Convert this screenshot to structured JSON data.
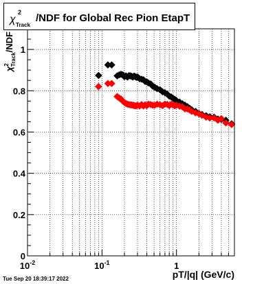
{
  "title": {
    "chi": "χ",
    "sup": "2",
    "sub": "Track",
    "text": "/NDF for Global Rec Pion EtapT"
  },
  "timestamp": "Tue Sep 20 18:39:17 2022",
  "chart_data": {
    "type": "scatter",
    "title": "χ²Track/NDF for Global Rec Pion EtapT",
    "xlabel": "pT/|q| (GeV/c)",
    "ylabel": "χ²Track/NDF",
    "xscale": "log",
    "xlim": [
      0.01,
      6.0
    ],
    "ylim": [
      0,
      1.1
    ],
    "grid": true,
    "xtick_labels": [
      "10^-2",
      "10^-1",
      "1"
    ],
    "ytick_labels": [
      "0",
      "0.2",
      "0.4",
      "0.6",
      "0.8",
      "1"
    ],
    "series": [
      {
        "color": "#000000",
        "x": [
          0.09,
          0.12,
          0.135,
          0.16,
          0.17,
          0.18,
          0.19,
          0.2,
          0.21,
          0.22,
          0.23,
          0.24,
          0.25,
          0.26,
          0.27,
          0.28,
          0.29,
          0.3,
          0.32,
          0.34,
          0.36,
          0.38,
          0.4,
          0.42,
          0.45,
          0.48,
          0.51,
          0.55,
          0.6,
          0.65,
          0.7,
          0.75,
          0.8,
          0.85,
          0.9,
          0.95,
          1.0,
          1.1,
          1.2,
          1.3,
          1.4,
          1.5,
          1.6,
          1.8,
          2.0,
          2.2,
          2.5,
          2.8,
          3.2,
          3.6,
          4.0,
          4.6,
          5.5
        ],
        "y": [
          0.874,
          0.925,
          0.925,
          0.872,
          0.877,
          0.88,
          0.877,
          0.868,
          0.872,
          0.866,
          0.873,
          0.872,
          0.87,
          0.866,
          0.871,
          0.868,
          0.865,
          0.867,
          0.858,
          0.856,
          0.853,
          0.845,
          0.843,
          0.838,
          0.833,
          0.822,
          0.817,
          0.81,
          0.805,
          0.795,
          0.79,
          0.784,
          0.774,
          0.77,
          0.763,
          0.758,
          0.752,
          0.745,
          0.737,
          0.73,
          0.723,
          0.715,
          0.708,
          0.7,
          0.69,
          0.685,
          0.679,
          0.674,
          0.672,
          0.663,
          0.661,
          0.657,
          0.64
        ]
      },
      {
        "color": "#ff0000",
        "x": [
          0.09,
          0.12,
          0.135,
          0.16,
          0.17,
          0.18,
          0.19,
          0.2,
          0.21,
          0.22,
          0.23,
          0.24,
          0.25,
          0.26,
          0.27,
          0.28,
          0.29,
          0.3,
          0.32,
          0.34,
          0.36,
          0.38,
          0.4,
          0.42,
          0.45,
          0.48,
          0.51,
          0.55,
          0.6,
          0.65,
          0.7,
          0.75,
          0.8,
          0.85,
          0.9,
          0.95,
          1.0,
          1.1,
          1.2,
          1.3,
          1.4,
          1.5,
          1.6,
          1.8,
          2.0,
          2.2,
          2.5,
          2.8,
          3.2,
          3.6,
          4.0,
          4.6,
          5.5
        ],
        "y": [
          0.82,
          0.835,
          0.835,
          0.772,
          0.765,
          0.76,
          0.75,
          0.743,
          0.738,
          0.735,
          0.733,
          0.732,
          0.731,
          0.73,
          0.728,
          0.727,
          0.727,
          0.73,
          0.726,
          0.733,
          0.726,
          0.732,
          0.728,
          0.735,
          0.733,
          0.73,
          0.73,
          0.735,
          0.732,
          0.728,
          0.735,
          0.734,
          0.728,
          0.735,
          0.731,
          0.727,
          0.73,
          0.725,
          0.722,
          0.712,
          0.712,
          0.707,
          0.7,
          0.693,
          0.688,
          0.681,
          0.672,
          0.668,
          0.668,
          0.657,
          0.665,
          0.644,
          0.636
        ]
      }
    ]
  }
}
